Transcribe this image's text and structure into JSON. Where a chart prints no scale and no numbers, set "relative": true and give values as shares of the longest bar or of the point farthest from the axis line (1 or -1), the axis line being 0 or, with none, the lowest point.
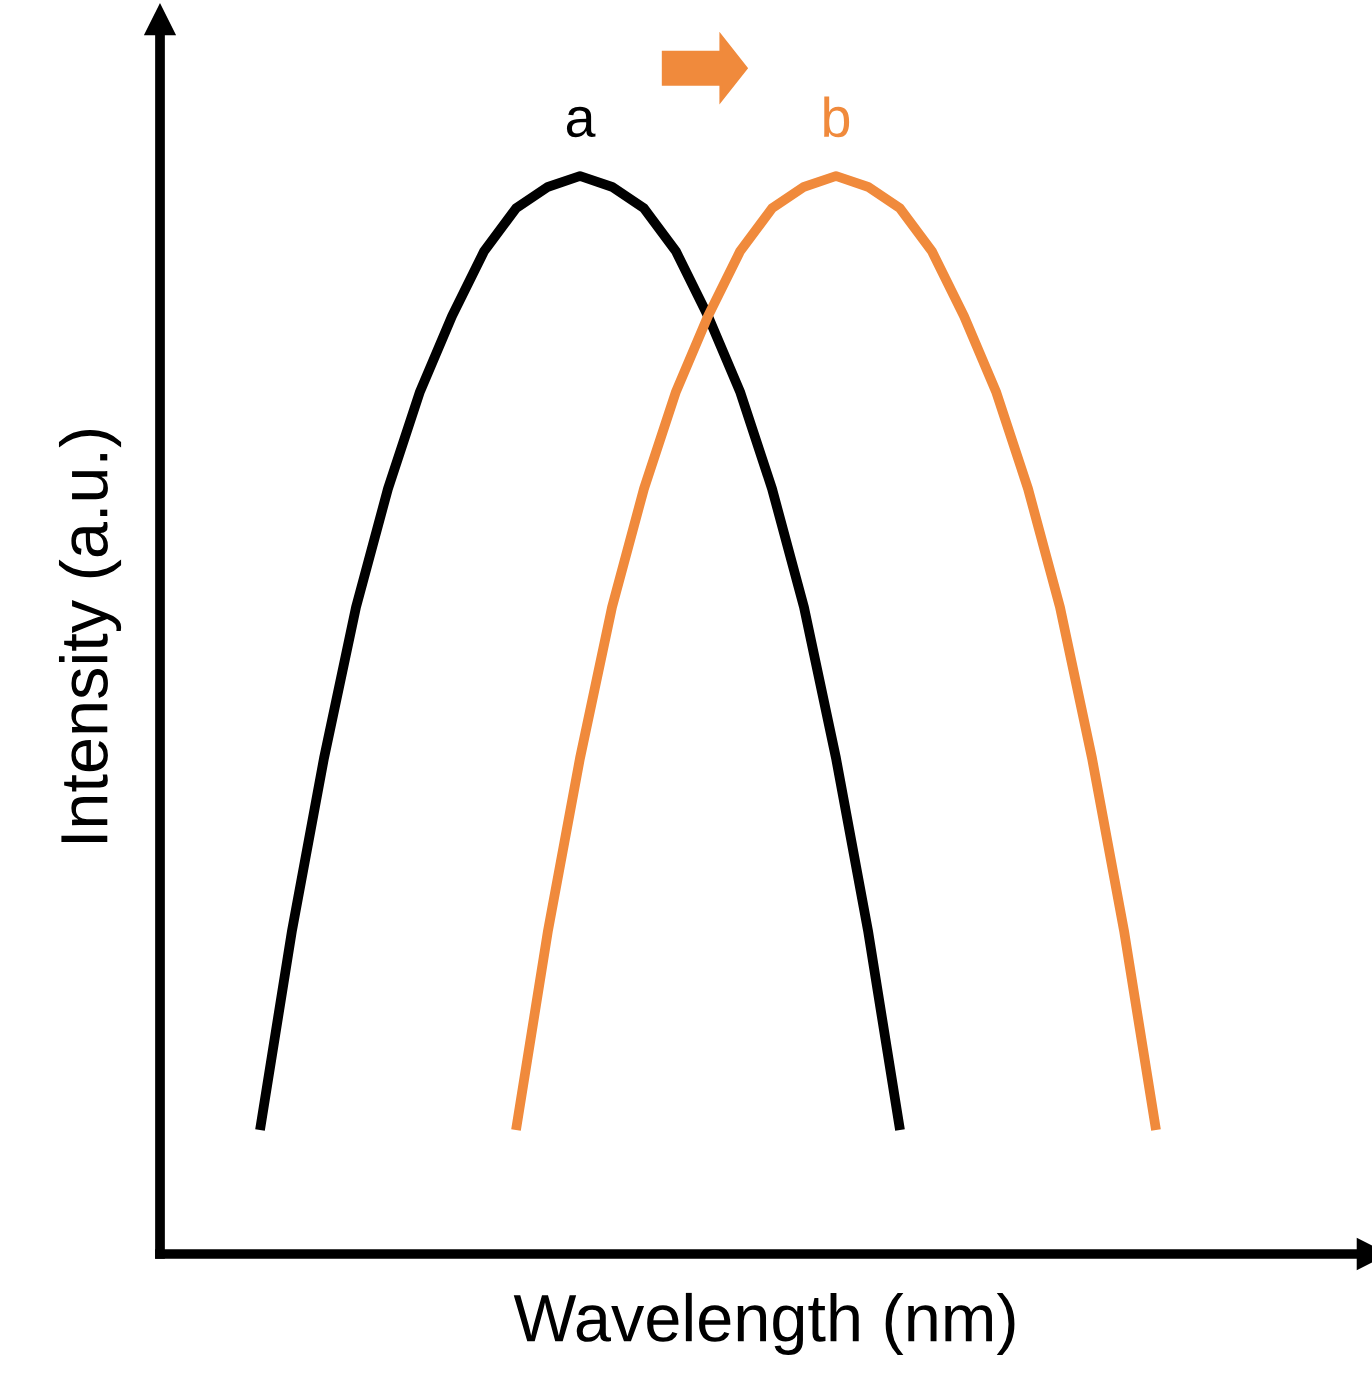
{
  "chart_data": {
    "type": "line",
    "relative": true,
    "xlabel": "Wavelength (nm)",
    "ylabel": "Intensity (a.u.)",
    "categories": [
      null,
      null,
      null,
      null,
      null,
      null,
      null,
      null,
      null,
      null,
      null,
      null,
      null,
      null,
      null,
      null,
      null,
      null,
      null,
      null,
      null,
      null,
      null,
      null,
      null,
      null,
      null,
      null,
      null
    ],
    "series": [
      {
        "name": "a",
        "color": "#000000",
        "values": [
          0.115,
          0.3,
          0.46,
          0.6,
          0.71,
          0.8,
          0.87,
          0.93,
          0.97,
          0.99,
          1,
          0.99,
          0.97,
          0.93,
          0.87,
          0.8,
          0.71,
          0.6,
          0.46,
          0.3,
          0.115,
          null,
          null,
          null,
          null,
          null,
          null,
          null,
          null
        ]
      },
      {
        "name": "b",
        "color": "#f08a3c",
        "values": [
          null,
          null,
          null,
          null,
          null,
          null,
          null,
          null,
          0.115,
          0.3,
          0.46,
          0.6,
          0.71,
          0.8,
          0.87,
          0.93,
          0.97,
          0.99,
          1,
          0.99,
          0.97,
          0.93,
          0.87,
          0.8,
          0.71,
          0.6,
          0.46,
          0.3,
          0.115
        ]
      }
    ],
    "legend": false,
    "marker": "none",
    "line_style": "solid"
  }
}
